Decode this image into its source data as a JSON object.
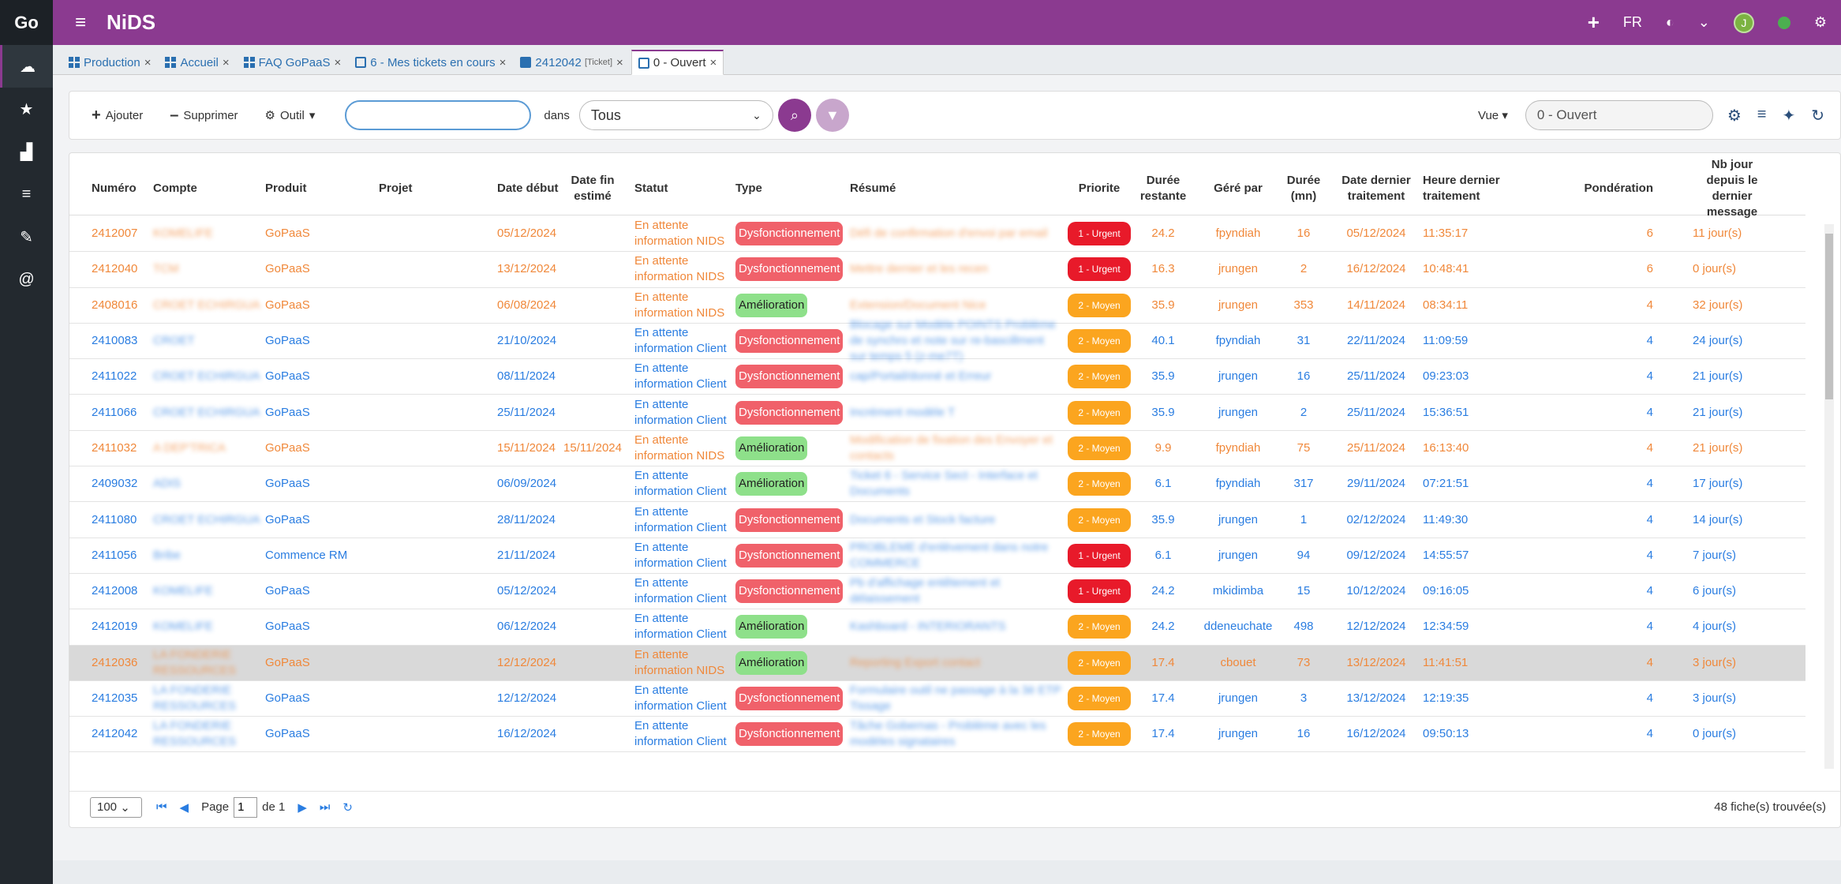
{
  "rail": {
    "logo": "Go",
    "icons": [
      "cloud-icon",
      "star-icon",
      "chart-icon",
      "list-icon",
      "wrench-icon",
      "at-icon"
    ]
  },
  "topbar": {
    "title": "NiDS",
    "lang": "FR",
    "avatar": "J"
  },
  "tabs": [
    {
      "label": "Production",
      "icon": "grid"
    },
    {
      "label": "Accueil",
      "icon": "grid"
    },
    {
      "label": "FAQ GoPaaS",
      "icon": "grid"
    },
    {
      "label": "6 - Mes tickets en cours",
      "icon": "box"
    },
    {
      "label": "2412042",
      "suffix": "[Ticket]",
      "icon": "boxfill"
    },
    {
      "label": "0 - Ouvert",
      "icon": "box",
      "active": true
    }
  ],
  "toolbar": {
    "add": "Ajouter",
    "remove": "Supprimer",
    "tool": "Outil",
    "search_value": "",
    "dans": "dans",
    "scope": "Tous",
    "vue": "Vue",
    "view_value": "0 - Ouvert"
  },
  "columns": {
    "numero": "Numéro",
    "compte": "Compte",
    "produit": "Produit",
    "projet": "Projet",
    "date_debut": "Date début",
    "date_fin": "Date fin estimé",
    "statut": "Statut",
    "type": "Type",
    "resume": "Résumé",
    "priorite": "Priorite",
    "duree_restante": "Durée restante",
    "gere_par": "Géré par",
    "duree": "Durée (mn)",
    "date_dernier": "Date dernier traitement",
    "heure_dernier": "Heure dernier traitement",
    "ponderation": "Pondération",
    "nb_jour": "Nb jour depuis le dernier message"
  },
  "rows": [
    {
      "num": "2412007",
      "compte": "KOMELIFE",
      "produit": "GoPaaS",
      "projet": "",
      "debut": "05/12/2024",
      "fin": "",
      "statut": "En attente information NIDS",
      "type": "Dysfonctionnement",
      "resume": "Défi de confirmation d'envoi par email",
      "prio": "1 - Urgent",
      "restante": "24.2",
      "gere": "fpyndiah",
      "duree": "16",
      "date_dt": "05/12/2024",
      "heure_dt": "11:35:17",
      "pond": "6",
      "nb": "11 jour(s)",
      "color": "orange"
    },
    {
      "num": "2412040",
      "compte": "TCM",
      "produit": "GoPaaS",
      "projet": "",
      "debut": "13/12/2024",
      "fin": "",
      "statut": "En attente information NIDS",
      "type": "Dysfonctionnement",
      "resume": "Mettre dernier et les recen",
      "prio": "1 - Urgent",
      "restante": "16.3",
      "gere": "jrungen",
      "duree": "2",
      "date_dt": "16/12/2024",
      "heure_dt": "10:48:41",
      "pond": "6",
      "nb": "0 jour(s)",
      "color": "orange"
    },
    {
      "num": "2408016",
      "compte": "CROET ECHIRGUA",
      "produit": "GoPaaS",
      "projet": "",
      "debut": "06/08/2024",
      "fin": "",
      "statut": "En attente information NIDS",
      "type": "Amélioration",
      "resume": "Extension/Document Nice",
      "prio": "2 - Moyen",
      "restante": "35.9",
      "gere": "jrungen",
      "duree": "353",
      "date_dt": "14/11/2024",
      "heure_dt": "08:34:11",
      "pond": "4",
      "nb": "32 jour(s)",
      "color": "orange"
    },
    {
      "num": "2410083",
      "compte": "CROET",
      "produit": "GoPaaS",
      "projet": "",
      "debut": "21/10/2024",
      "fin": "",
      "statut": "En attente information Client",
      "type": "Dysfonctionnement",
      "resume": "Blocage sur Modèle POINTS Problème de synchro et note sur re-bascillment sur temps 5 (z-me7T)",
      "prio": "2 - Moyen",
      "restante": "40.1",
      "gere": "fpyndiah",
      "duree": "31",
      "date_dt": "22/11/2024",
      "heure_dt": "11:09:59",
      "pond": "4",
      "nb": "24 jour(s)",
      "color": "blue"
    },
    {
      "num": "2411022",
      "compte": "CROET ECHIRGUA",
      "produit": "GoPaaS",
      "projet": "",
      "debut": "08/11/2024",
      "fin": "",
      "statut": "En attente information Client",
      "type": "Dysfonctionnement",
      "resume": "cap/Portail/donné et Erreur",
      "prio": "2 - Moyen",
      "restante": "35.9",
      "gere": "jrungen",
      "duree": "16",
      "date_dt": "25/11/2024",
      "heure_dt": "09:23:03",
      "pond": "4",
      "nb": "21 jour(s)",
      "color": "blue"
    },
    {
      "num": "2411066",
      "compte": "CROET ECHIRGUA",
      "produit": "GoPaaS",
      "projet": "",
      "debut": "25/11/2024",
      "fin": "",
      "statut": "En attente information Client",
      "type": "Dysfonctionnement",
      "resume": "Incrément modèle T",
      "prio": "2 - Moyen",
      "restante": "35.9",
      "gere": "jrungen",
      "duree": "2",
      "date_dt": "25/11/2024",
      "heure_dt": "15:36:51",
      "pond": "4",
      "nb": "21 jour(s)",
      "color": "blue"
    },
    {
      "num": "2411032",
      "compte": "A DEP'TRICA",
      "produit": "GoPaaS",
      "projet": "",
      "debut": "15/11/2024",
      "fin": "15/11/2024",
      "statut": "En attente information NIDS",
      "type": "Amélioration",
      "resume": "Modification de fixation des Envoyer et contacts",
      "prio": "2 - Moyen",
      "restante": "9.9",
      "gere": "fpyndiah",
      "duree": "75",
      "date_dt": "25/11/2024",
      "heure_dt": "16:13:40",
      "pond": "4",
      "nb": "21 jour(s)",
      "color": "orange"
    },
    {
      "num": "2409032",
      "compte": "ADIS",
      "produit": "GoPaaS",
      "projet": "",
      "debut": "06/09/2024",
      "fin": "",
      "statut": "En attente information Client",
      "type": "Amélioration",
      "resume": "Ticket 6 - Service Sect - Interface et Documents",
      "prio": "2 - Moyen",
      "restante": "6.1",
      "gere": "fpyndiah",
      "duree": "317",
      "date_dt": "29/11/2024",
      "heure_dt": "07:21:51",
      "pond": "4",
      "nb": "17 jour(s)",
      "color": "blue"
    },
    {
      "num": "2411080",
      "compte": "CROET ECHIRGUA",
      "produit": "GoPaaS",
      "projet": "",
      "debut": "28/11/2024",
      "fin": "",
      "statut": "En attente information Client",
      "type": "Dysfonctionnement",
      "resume": "Documents et Stock facture",
      "prio": "2 - Moyen",
      "restante": "35.9",
      "gere": "jrungen",
      "duree": "1",
      "date_dt": "02/12/2024",
      "heure_dt": "11:49:30",
      "pond": "4",
      "nb": "14 jour(s)",
      "color": "blue"
    },
    {
      "num": "2411056",
      "compte": "Bribe",
      "produit": "Commence RM",
      "projet": "",
      "debut": "21/11/2024",
      "fin": "",
      "statut": "En attente information Client",
      "type": "Dysfonctionnement",
      "resume": "PROBLEME d'enlèvement dans notre COMMERCE",
      "prio": "1 - Urgent",
      "restante": "6.1",
      "gere": "jrungen",
      "duree": "94",
      "date_dt": "09/12/2024",
      "heure_dt": "14:55:57",
      "pond": "4",
      "nb": "7 jour(s)",
      "color": "blue"
    },
    {
      "num": "2412008",
      "compte": "KOMELIFE",
      "produit": "GoPaaS",
      "projet": "",
      "debut": "05/12/2024",
      "fin": "",
      "statut": "En attente information Client",
      "type": "Dysfonctionnement",
      "resume": "Pb d'affichage entêtement et délaissement",
      "prio": "1 - Urgent",
      "restante": "24.2",
      "gere": "mkidimba",
      "duree": "15",
      "date_dt": "10/12/2024",
      "heure_dt": "09:16:05",
      "pond": "4",
      "nb": "6 jour(s)",
      "color": "blue"
    },
    {
      "num": "2412019",
      "compte": "KOMELIFE",
      "produit": "GoPaaS",
      "projet": "",
      "debut": "06/12/2024",
      "fin": "",
      "statut": "En attente information Client",
      "type": "Amélioration",
      "resume": "Kashboard - INTERIORANTS",
      "prio": "2 - Moyen",
      "restante": "24.2",
      "gere": "ddeneuchate",
      "duree": "498",
      "date_dt": "12/12/2024",
      "heure_dt": "12:34:59",
      "pond": "4",
      "nb": "4 jour(s)",
      "color": "blue"
    },
    {
      "num": "2412036",
      "compte": "LA FONDERIE RESSOURCES",
      "produit": "GoPaaS",
      "projet": "",
      "debut": "12/12/2024",
      "fin": "",
      "statut": "En attente information NIDS",
      "type": "Amélioration",
      "resume": "Reporting Export contact",
      "prio": "2 - Moyen",
      "restante": "17.4",
      "gere": "cbouet",
      "duree": "73",
      "date_dt": "13/12/2024",
      "heure_dt": "11:41:51",
      "pond": "4",
      "nb": "3 jour(s)",
      "color": "orange",
      "selected": true
    },
    {
      "num": "2412035",
      "compte": "LA FONDERIE RESSOURCES",
      "produit": "GoPaaS",
      "projet": "",
      "debut": "12/12/2024",
      "fin": "",
      "statut": "En attente information Client",
      "type": "Dysfonctionnement",
      "resume": "Formulaire outil ne passage à la 3è ETP Tissage",
      "prio": "2 - Moyen",
      "restante": "17.4",
      "gere": "jrungen",
      "duree": "3",
      "date_dt": "13/12/2024",
      "heure_dt": "12:19:35",
      "pond": "4",
      "nb": "3 jour(s)",
      "color": "blue"
    },
    {
      "num": "2412042",
      "compte": "LA FONDERIE RESSOURCES",
      "produit": "GoPaaS",
      "projet": "",
      "debut": "16/12/2024",
      "fin": "",
      "statut": "En attente information Client",
      "type": "Dysfonctionnement",
      "resume": "Tâche Gobernas - Problème avec les modèles signataires",
      "prio": "2 - Moyen",
      "restante": "17.4",
      "gere": "jrungen",
      "duree": "16",
      "date_dt": "16/12/2024",
      "heure_dt": "09:50:13",
      "pond": "4",
      "nb": "0 jour(s)",
      "color": "blue"
    }
  ],
  "pager": {
    "page_size": "100",
    "page_label": "Page",
    "page": "1",
    "of": "de 1",
    "count": "48 fiche(s) trouvée(s)"
  }
}
